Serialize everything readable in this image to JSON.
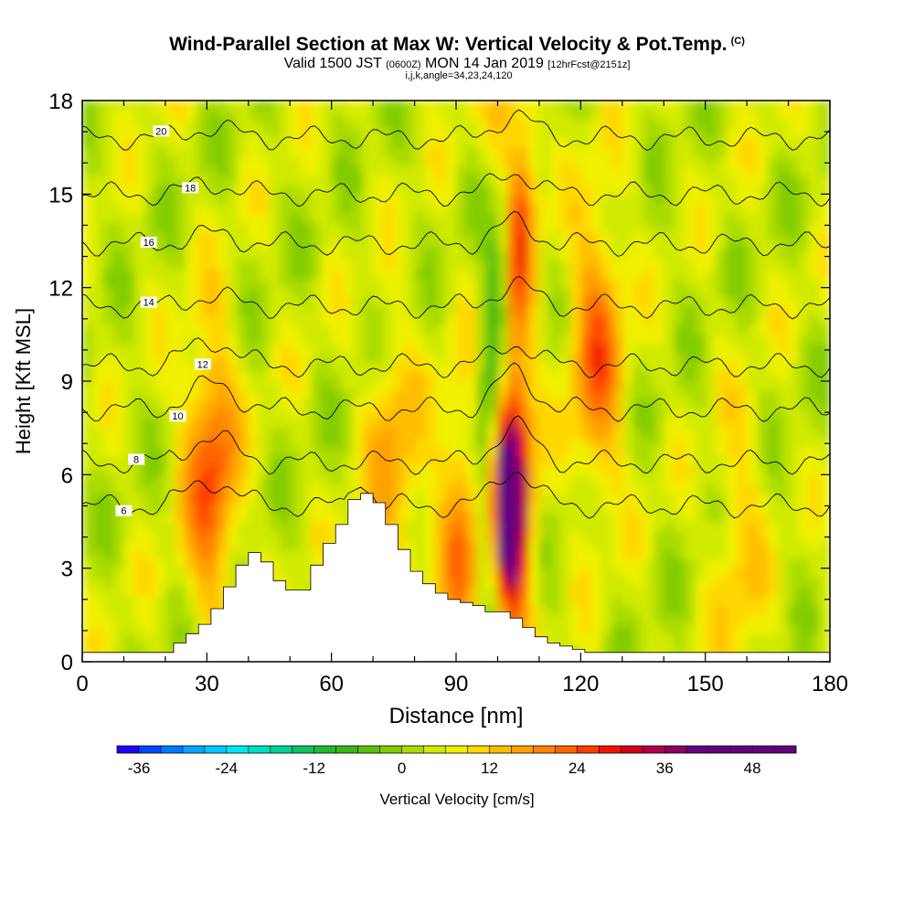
{
  "header": {
    "title": "Wind-Parallel Section at Max W: Vertical Velocity & Pot.Temp.",
    "title_mark": "(C)",
    "valid_prefix": "Valid 1500 JST",
    "valid_utc": "(0600Z)",
    "valid_date": "MON 14 Jan 2019",
    "forecast": "[12hrFcst@2151z]",
    "grid_info": "i,j,k,angle=34,23,24,120"
  },
  "chart_data": {
    "type": "heatmap",
    "title": "Wind-Parallel Section at Max W: Vertical Velocity & Pot.Temp.",
    "xlabel": "Distance [nm]",
    "ylabel": "Height [Kft MSL]",
    "xlim": [
      0,
      180
    ],
    "ylim": [
      0,
      18
    ],
    "x_ticks": [
      "0",
      "30",
      "60",
      "90",
      "120",
      "150",
      "180"
    ],
    "y_ticks": [
      "0",
      "3",
      "6",
      "9",
      "12",
      "15",
      "18"
    ],
    "colorbar": {
      "label": "Vertical Velocity [cm/s]",
      "range": [
        -39,
        54
      ],
      "step": 3,
      "tick_labels": [
        "-36",
        "-24",
        "-12",
        "0",
        "12",
        "24",
        "36",
        "48"
      ],
      "tick_values": [
        -36,
        -24,
        -12,
        0,
        12,
        24,
        36,
        48
      ]
    },
    "velocity_features": [
      {
        "x": 103,
        "y": 5,
        "w": 52,
        "note": "strong updraft"
      },
      {
        "x": 104,
        "y": 15,
        "w": 30
      },
      {
        "x": 98,
        "y": 4,
        "w": -14
      },
      {
        "x": 101,
        "y": 13,
        "w": -22
      },
      {
        "x": 31,
        "y": 6,
        "w": 20
      },
      {
        "x": 124,
        "y": 10,
        "w": 18
      },
      {
        "x": 75,
        "y": 6,
        "w": 12
      },
      {
        "x": 158,
        "y": 3.5,
        "w": 8
      },
      {
        "x": 92,
        "y": 4,
        "w": 16
      }
    ],
    "theta_contours": [
      {
        "value": 6,
        "y0": 5.0,
        "label": "6",
        "label_x": 10
      },
      {
        "value": 8,
        "y0": 6.4,
        "label": "8",
        "label_x": 13
      },
      {
        "value": 10,
        "y0": 8.1,
        "label": "10",
        "label_x": 23
      },
      {
        "value": 12,
        "y0": 9.5,
        "label": "12",
        "label_x": 29
      },
      {
        "value": 14,
        "y0": 11.4,
        "label": "14",
        "label_x": 16
      },
      {
        "value": 16,
        "y0": 13.4,
        "label": "16",
        "label_x": 16
      },
      {
        "value": 18,
        "y0": 15.0,
        "label": "18",
        "label_x": 26
      },
      {
        "value": 20,
        "y0": 16.8,
        "label": "20",
        "label_x": 19
      }
    ],
    "terrain": {
      "x": [
        0,
        22,
        25,
        28,
        31,
        34,
        37,
        40,
        43,
        46,
        49,
        52,
        55,
        58,
        61,
        64,
        67,
        70,
        73,
        76,
        79,
        82,
        85,
        88,
        91,
        94,
        97,
        100,
        103,
        106,
        109,
        112,
        115,
        118,
        121,
        180
      ],
      "height": [
        0.3,
        0.6,
        0.9,
        1.2,
        1.7,
        2.4,
        3.1,
        3.5,
        3.2,
        2.6,
        2.3,
        2.3,
        3.1,
        3.8,
        4.4,
        5.2,
        5.4,
        5.1,
        4.4,
        3.6,
        2.9,
        2.5,
        2.2,
        2.0,
        1.9,
        1.8,
        1.6,
        1.6,
        1.4,
        1.1,
        0.8,
        0.6,
        0.5,
        0.4,
        0.3,
        0.3
      ]
    }
  }
}
